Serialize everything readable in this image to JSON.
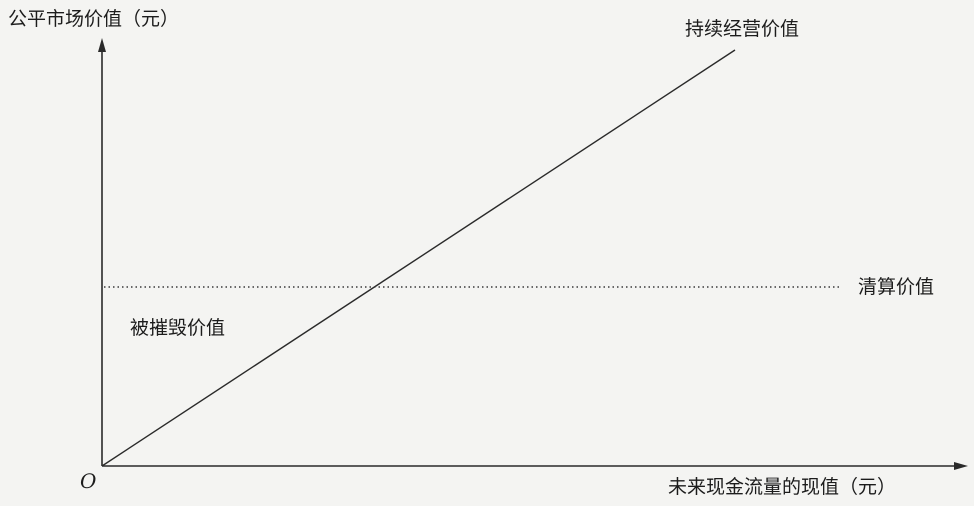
{
  "diagram": {
    "y_axis_title": "公平市场价值（元）",
    "x_axis_title": "未来现金流量的现值（元）",
    "origin_label": "O",
    "going_concern_label": "持续经营价值",
    "liquidation_label": "清算价值",
    "destroyed_value_label": "被摧毁价值"
  },
  "colors": {
    "line": "#2a2a2a",
    "text": "#1c1c1c",
    "background": "#f4f4f2"
  }
}
